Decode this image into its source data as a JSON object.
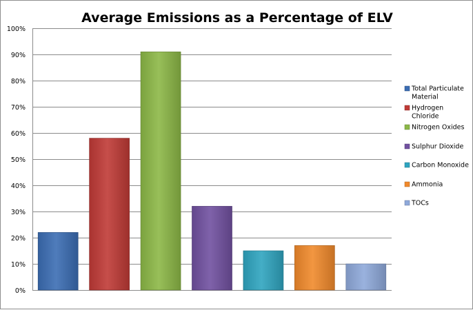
{
  "chart_data": {
    "type": "bar",
    "title": "Average Emissions as a Percentage of ELV",
    "xlabel": "",
    "ylabel": "",
    "ylim": [
      0,
      100
    ],
    "yticks": [
      0,
      10,
      20,
      30,
      40,
      50,
      60,
      70,
      80,
      90,
      100
    ],
    "ytick_suffix": "%",
    "grid": true,
    "legend_position": "right",
    "series": [
      {
        "name": "Total Particulate Material",
        "value": 22,
        "color": "#3B6DB3",
        "legend_lines": [
          "Total Particulate",
          "Material"
        ]
      },
      {
        "name": "Hydrogen Chloride",
        "value": 58,
        "color": "#C03A36",
        "legend_lines": [
          "Hydrogen",
          "Chloride"
        ]
      },
      {
        "name": "Nitrogen Oxides",
        "value": 91,
        "color": "#8CB847",
        "legend_lines": [
          "Nitrogen Oxides"
        ]
      },
      {
        "name": "Sulphur Dioxide",
        "value": 32,
        "color": "#7151A0",
        "legend_lines": [
          "Sulphur Dioxide"
        ]
      },
      {
        "name": "Carbon Monoxide",
        "value": 15,
        "color": "#2FA5C0",
        "legend_lines": [
          "Carbon Monoxide"
        ]
      },
      {
        "name": "Ammonia",
        "value": 17,
        "color": "#F18A2C",
        "legend_lines": [
          "Ammonia"
        ]
      },
      {
        "name": "TOCs",
        "value": 10,
        "color": "#8FA9DA",
        "legend_lines": [
          "TOCs"
        ]
      }
    ]
  }
}
